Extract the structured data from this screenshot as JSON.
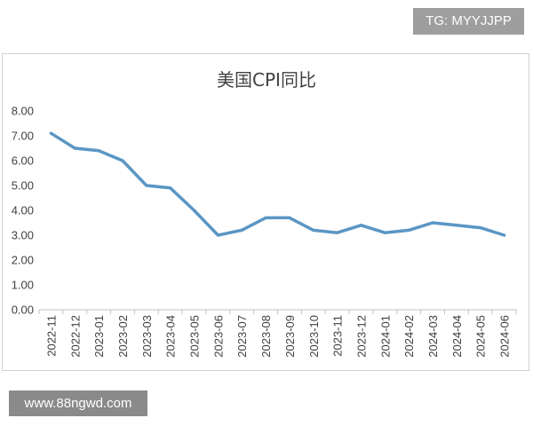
{
  "watermark_top": "TG: MYYJJPP",
  "watermark_bottom": "www.88ngwd.com",
  "colors": {
    "line": "#5b96c4",
    "axis": "#bfbfbf",
    "text": "#404040"
  },
  "chart_data": {
    "type": "line",
    "title": "美国CPI同比",
    "xlabel": "",
    "ylabel": "",
    "ylim": [
      0,
      8
    ],
    "yticks": [
      "0.00",
      "1.00",
      "2.00",
      "3.00",
      "4.00",
      "5.00",
      "6.00",
      "7.00",
      "8.00"
    ],
    "grid": false,
    "legend": "none",
    "categories": [
      "2022-11",
      "2022-12",
      "2023-01",
      "2023-02",
      "2023-03",
      "2023-04",
      "2023-05",
      "2023-06",
      "2023-07",
      "2023-08",
      "2023-09",
      "2023-10",
      "2023-11",
      "2023-12",
      "2024-01",
      "2024-02",
      "2024-03",
      "2024-04",
      "2024-05",
      "2024-06"
    ],
    "series": [
      {
        "values": [
          7.1,
          6.5,
          6.4,
          6.0,
          5.0,
          4.9,
          4.0,
          3.0,
          3.2,
          3.7,
          3.7,
          3.2,
          3.1,
          3.4,
          3.1,
          3.2,
          3.5,
          3.4,
          3.3,
          3.0
        ]
      }
    ]
  }
}
